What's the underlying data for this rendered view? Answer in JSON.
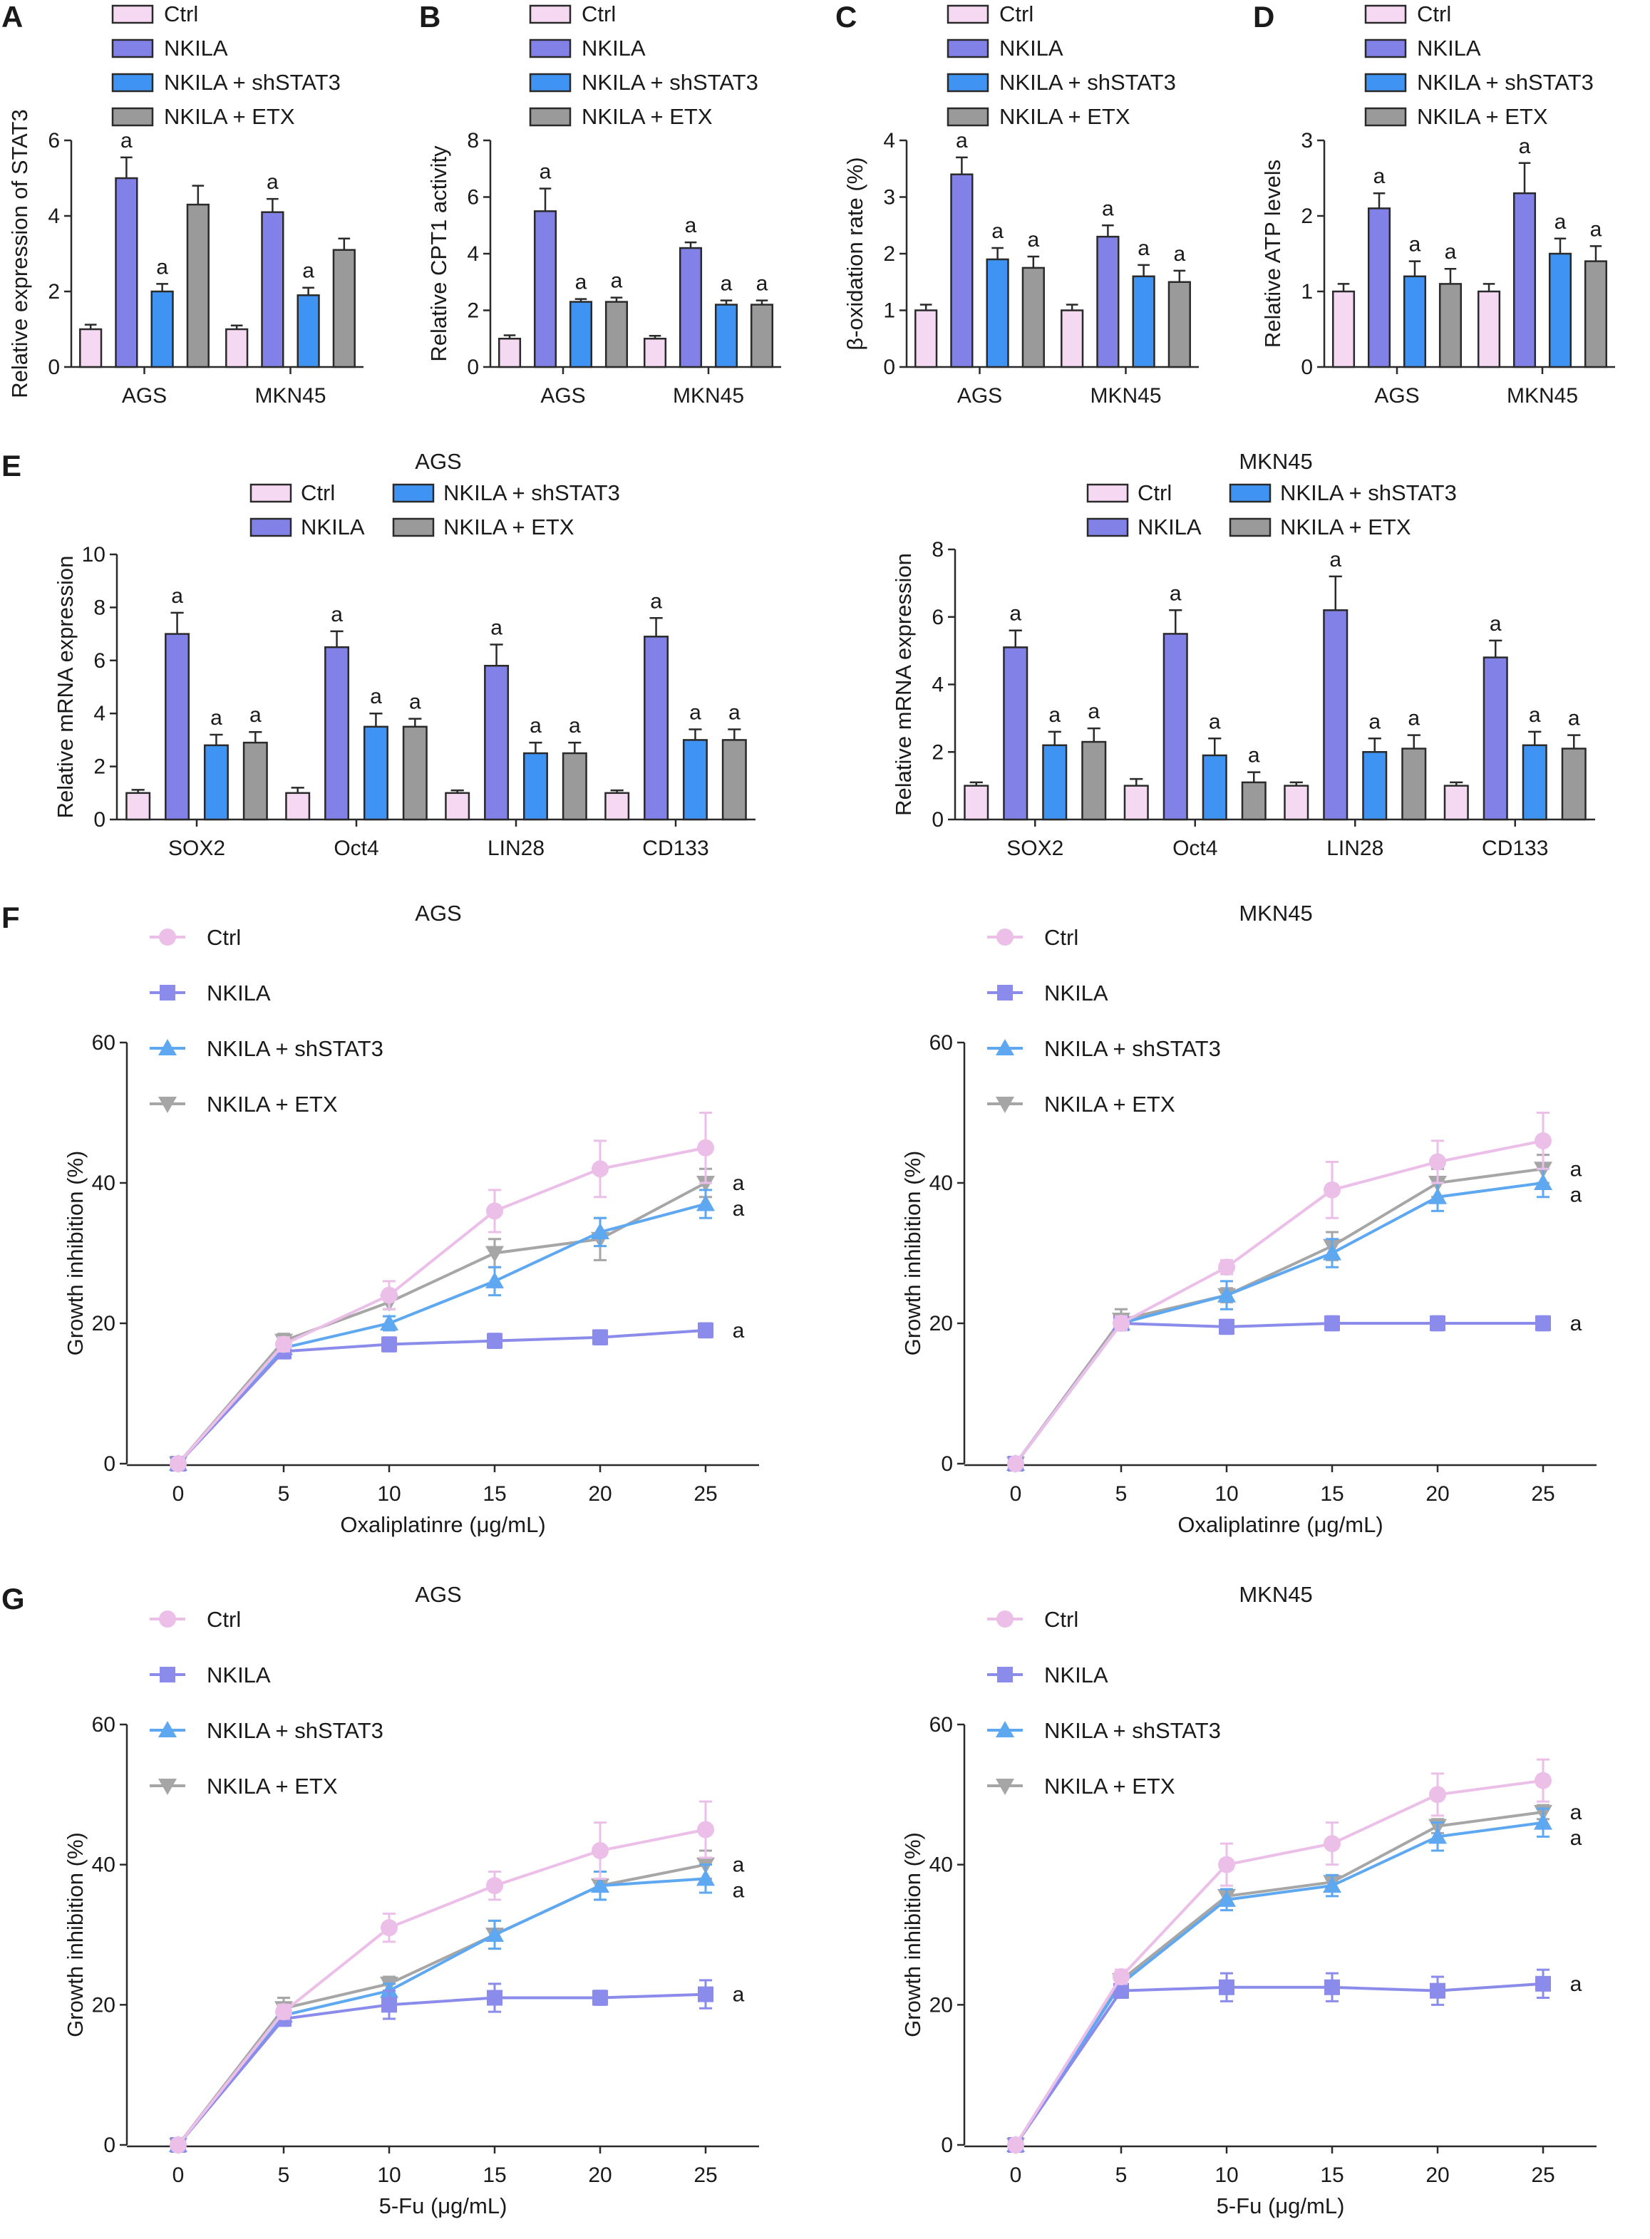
{
  "colors": {
    "Ctrl": "#f5d8f2",
    "NKILA": "#8181e8",
    "NKILA + shSTAT3": "#3f93f2",
    "NKILA + ETX": "#9a9a9a",
    "line_Ctrl": "#ebbfe8",
    "line_NKILA": "#8b8beb",
    "line_shSTAT3": "#5da8f0",
    "line_ETX": "#a6a6a6"
  },
  "legend_labels": [
    "Ctrl",
    "NKILA",
    "NKILA + shSTAT3",
    "NKILA + ETX"
  ],
  "chart_data": [
    {
      "panel": "A",
      "type": "bar",
      "ylabel": "Relative expression of STAT3",
      "categories": [
        "AGS",
        "MKN45"
      ],
      "ylim": [
        0,
        6
      ],
      "yticks": [
        0,
        2,
        4,
        6
      ],
      "series": [
        {
          "name": "Ctrl",
          "values": [
            1.0,
            1.0
          ],
          "errors": [
            0.12,
            0.1
          ],
          "labels": [
            "",
            ""
          ]
        },
        {
          "name": "NKILA",
          "values": [
            5.0,
            4.1
          ],
          "errors": [
            0.55,
            0.35
          ],
          "labels": [
            "a",
            "a"
          ]
        },
        {
          "name": "NKILA + shSTAT3",
          "values": [
            2.0,
            1.9
          ],
          "errors": [
            0.2,
            0.2
          ],
          "labels": [
            "a",
            "a"
          ]
        },
        {
          "name": "NKILA + ETX",
          "values": [
            4.3,
            3.1
          ],
          "errors": [
            0.5,
            0.3
          ],
          "labels": [
            "",
            ""
          ]
        }
      ]
    },
    {
      "panel": "B",
      "type": "bar",
      "ylabel": "Relative CPT1 activity",
      "categories": [
        "AGS",
        "MKN45"
      ],
      "ylim": [
        0,
        8
      ],
      "yticks": [
        0,
        2,
        4,
        6,
        8
      ],
      "series": [
        {
          "name": "Ctrl",
          "values": [
            1.0,
            1.0
          ],
          "errors": [
            0.12,
            0.1
          ],
          "labels": [
            "",
            ""
          ]
        },
        {
          "name": "NKILA",
          "values": [
            5.5,
            4.2
          ],
          "errors": [
            0.8,
            0.2
          ],
          "labels": [
            "a",
            "a"
          ]
        },
        {
          "name": "NKILA + shSTAT3",
          "values": [
            2.3,
            2.2
          ],
          "errors": [
            0.1,
            0.15
          ],
          "labels": [
            "a",
            "a"
          ]
        },
        {
          "name": "NKILA + ETX",
          "values": [
            2.3,
            2.2
          ],
          "errors": [
            0.15,
            0.15
          ],
          "labels": [
            "a",
            "a"
          ]
        }
      ]
    },
    {
      "panel": "C",
      "type": "bar",
      "ylabel": "β-oxidation rate (%)",
      "categories": [
        "AGS",
        "MKN45"
      ],
      "ylim": [
        0,
        4
      ],
      "yticks": [
        0,
        1,
        2,
        3,
        4
      ],
      "series": [
        {
          "name": "Ctrl",
          "values": [
            1.0,
            1.0
          ],
          "errors": [
            0.1,
            0.1
          ],
          "labels": [
            "",
            ""
          ]
        },
        {
          "name": "NKILA",
          "values": [
            3.4,
            2.3
          ],
          "errors": [
            0.3,
            0.2
          ],
          "labels": [
            "a",
            "a"
          ]
        },
        {
          "name": "NKILA + shSTAT3",
          "values": [
            1.9,
            1.6
          ],
          "errors": [
            0.2,
            0.2
          ],
          "labels": [
            "a",
            "a"
          ]
        },
        {
          "name": "NKILA + ETX",
          "values": [
            1.75,
            1.5
          ],
          "errors": [
            0.2,
            0.2
          ],
          "labels": [
            "a",
            "a"
          ]
        }
      ]
    },
    {
      "panel": "D",
      "type": "bar",
      "ylabel": "Relative ATP levels",
      "categories": [
        "AGS",
        "MKN45"
      ],
      "ylim": [
        0,
        3
      ],
      "yticks": [
        0,
        1,
        2,
        3
      ],
      "series": [
        {
          "name": "Ctrl",
          "values": [
            1.0,
            1.0
          ],
          "errors": [
            0.1,
            0.1
          ],
          "labels": [
            "",
            ""
          ]
        },
        {
          "name": "NKILA",
          "values": [
            2.1,
            2.3
          ],
          "errors": [
            0.2,
            0.4
          ],
          "labels": [
            "a",
            "a"
          ]
        },
        {
          "name": "NKILA + shSTAT3",
          "values": [
            1.2,
            1.5
          ],
          "errors": [
            0.2,
            0.2
          ],
          "labels": [
            "a",
            "a"
          ]
        },
        {
          "name": "NKILA + ETX",
          "values": [
            1.1,
            1.4
          ],
          "errors": [
            0.2,
            0.2
          ],
          "labels": [
            "a",
            "a"
          ]
        }
      ]
    },
    {
      "panel": "E",
      "subtitle": "AGS",
      "type": "bar",
      "ylabel": "Relative mRNA expression",
      "categories": [
        "SOX2",
        "Oct4",
        "LIN28",
        "CD133"
      ],
      "ylim": [
        0,
        10
      ],
      "yticks": [
        0,
        2,
        4,
        6,
        8,
        10
      ],
      "series": [
        {
          "name": "Ctrl",
          "values": [
            1.0,
            1.0,
            1.0,
            1.0
          ],
          "errors": [
            0.12,
            0.2,
            0.1,
            0.1
          ],
          "labels": [
            "",
            "",
            "",
            ""
          ]
        },
        {
          "name": "NKILA",
          "values": [
            7.0,
            6.5,
            5.8,
            6.9
          ],
          "errors": [
            0.8,
            0.6,
            0.8,
            0.7
          ],
          "labels": [
            "a",
            "a",
            "a",
            "a"
          ]
        },
        {
          "name": "NKILA + shSTAT3",
          "values": [
            2.8,
            3.5,
            2.5,
            3.0
          ],
          "errors": [
            0.4,
            0.5,
            0.4,
            0.4
          ],
          "labels": [
            "a",
            "a",
            "a",
            "a"
          ]
        },
        {
          "name": "NKILA + ETX",
          "values": [
            2.9,
            3.5,
            2.5,
            3.0
          ],
          "errors": [
            0.4,
            0.3,
            0.4,
            0.4
          ],
          "labels": [
            "a",
            "a",
            "a",
            "a"
          ]
        }
      ]
    },
    {
      "panel": "E",
      "subtitle": "MKN45",
      "type": "bar",
      "ylabel": "Relative mRNA expression",
      "categories": [
        "SOX2",
        "Oct4",
        "LIN28",
        "CD133"
      ],
      "ylim": [
        0,
        8
      ],
      "yticks": [
        0,
        2,
        4,
        6,
        8
      ],
      "series": [
        {
          "name": "Ctrl",
          "values": [
            1.0,
            1.0,
            1.0,
            1.0
          ],
          "errors": [
            0.1,
            0.2,
            0.1,
            0.1
          ],
          "labels": [
            "",
            "",
            "",
            ""
          ]
        },
        {
          "name": "NKILA",
          "values": [
            5.1,
            5.5,
            6.2,
            4.8
          ],
          "errors": [
            0.5,
            0.7,
            1.0,
            0.5
          ],
          "labels": [
            "a",
            "a",
            "a",
            "a"
          ]
        },
        {
          "name": "NKILA + shSTAT3",
          "values": [
            2.2,
            1.9,
            2.0,
            2.2
          ],
          "errors": [
            0.4,
            0.5,
            0.4,
            0.4
          ],
          "labels": [
            "a",
            "a",
            "a",
            "a"
          ]
        },
        {
          "name": "NKILA + ETX",
          "values": [
            2.3,
            1.1,
            2.1,
            2.1
          ],
          "errors": [
            0.4,
            0.3,
            0.4,
            0.4
          ],
          "labels": [
            "a",
            "a",
            "a",
            "a"
          ]
        }
      ]
    },
    {
      "panel": "F",
      "subtitle": "AGS",
      "type": "line",
      "xlabel": "Oxaliplatinre (μg/mL)",
      "ylabel": "Growth inhibition (%)",
      "x": [
        0,
        5,
        10,
        15,
        20,
        25
      ],
      "ylim": [
        0,
        60
      ],
      "yticks": [
        0,
        20,
        40,
        60
      ],
      "series": [
        {
          "name": "Ctrl",
          "values": [
            0,
            17,
            24,
            36,
            42,
            45
          ],
          "errors": [
            0,
            1,
            2,
            3,
            4,
            5
          ],
          "label": ""
        },
        {
          "name": "NKILA",
          "values": [
            0,
            16,
            17,
            17.5,
            18,
            19
          ],
          "errors": [
            0,
            1,
            1,
            1,
            1,
            1
          ],
          "label": "a"
        },
        {
          "name": "NKILA + shSTAT3",
          "values": [
            0,
            16.5,
            20,
            26,
            33,
            37
          ],
          "errors": [
            0,
            1,
            1,
            2,
            2,
            2
          ],
          "label": "a"
        },
        {
          "name": "NKILA + ETX",
          "values": [
            0,
            17.5,
            23,
            30,
            32,
            40
          ],
          "errors": [
            0,
            1,
            1,
            2,
            3,
            2
          ],
          "label": "a"
        }
      ]
    },
    {
      "panel": "F",
      "subtitle": "MKN45",
      "type": "line",
      "xlabel": "Oxaliplatinre (μg/mL)",
      "ylabel": "Growth inhibition (%)",
      "x": [
        0,
        5,
        10,
        15,
        20,
        25
      ],
      "ylim": [
        0,
        60
      ],
      "yticks": [
        0,
        20,
        40,
        60
      ],
      "series": [
        {
          "name": "Ctrl",
          "values": [
            0,
            20,
            28,
            39,
            43,
            46
          ],
          "errors": [
            0,
            1,
            1,
            4,
            3,
            4
          ],
          "label": ""
        },
        {
          "name": "NKILA",
          "values": [
            0,
            20,
            19.5,
            20,
            20,
            20
          ],
          "errors": [
            0,
            1,
            1,
            1,
            1,
            1
          ],
          "label": "a"
        },
        {
          "name": "NKILA + shSTAT3",
          "values": [
            0,
            20,
            24,
            30,
            38,
            40
          ],
          "errors": [
            0,
            1,
            2,
            2,
            2,
            2
          ],
          "label": "a"
        },
        {
          "name": "NKILA + ETX",
          "values": [
            0,
            20.5,
            24,
            31,
            40,
            42
          ],
          "errors": [
            0,
            1.5,
            1,
            2,
            2,
            2
          ],
          "label": "a"
        }
      ]
    },
    {
      "panel": "G",
      "subtitle": "AGS",
      "type": "line",
      "xlabel": "5-Fu (μg/mL)",
      "ylabel": "Growth inhibition (%)",
      "x": [
        0,
        5,
        10,
        15,
        20,
        25
      ],
      "ylim": [
        0,
        60
      ],
      "yticks": [
        0,
        20,
        40,
        60
      ],
      "series": [
        {
          "name": "Ctrl",
          "values": [
            0,
            19,
            31,
            37,
            42,
            45
          ],
          "errors": [
            0,
            1,
            2,
            2,
            4,
            4
          ],
          "label": ""
        },
        {
          "name": "NKILA",
          "values": [
            0,
            18,
            20,
            21,
            21,
            21.5
          ],
          "errors": [
            0,
            1,
            2,
            2,
            1,
            2
          ],
          "label": "a"
        },
        {
          "name": "NKILA + shSTAT3",
          "values": [
            0,
            18.5,
            22,
            30,
            37,
            38
          ],
          "errors": [
            0,
            1,
            1,
            2,
            2,
            2
          ],
          "label": "a"
        },
        {
          "name": "NKILA + ETX",
          "values": [
            0,
            19.5,
            23,
            30,
            37,
            40
          ],
          "errors": [
            0,
            1.5,
            1,
            2,
            2,
            2
          ],
          "label": "a"
        }
      ]
    },
    {
      "panel": "G",
      "subtitle": "MKN45",
      "type": "line",
      "xlabel": "5-Fu (μg/mL)",
      "ylabel": "Growth inhibition (%)",
      "x": [
        0,
        5,
        10,
        15,
        20,
        25
      ],
      "ylim": [
        0,
        60
      ],
      "yticks": [
        0,
        20,
        40,
        60
      ],
      "series": [
        {
          "name": "Ctrl",
          "values": [
            0,
            24,
            40,
            43,
            50,
            52
          ],
          "errors": [
            0,
            1,
            3,
            3,
            3,
            3
          ],
          "label": ""
        },
        {
          "name": "NKILA",
          "values": [
            0,
            22,
            22.5,
            22.5,
            22,
            23
          ],
          "errors": [
            0,
            1,
            2,
            2,
            2,
            2
          ],
          "label": "a"
        },
        {
          "name": "NKILA + shSTAT3",
          "values": [
            0,
            23,
            35,
            37,
            44,
            46
          ],
          "errors": [
            0,
            1,
            1.5,
            1.5,
            2,
            2
          ],
          "label": "a"
        },
        {
          "name": "NKILA + ETX",
          "values": [
            0,
            23.5,
            35.5,
            37.5,
            45.5,
            47.5
          ],
          "errors": [
            0,
            1,
            1,
            1,
            1,
            1
          ],
          "label": "a"
        }
      ]
    }
  ]
}
